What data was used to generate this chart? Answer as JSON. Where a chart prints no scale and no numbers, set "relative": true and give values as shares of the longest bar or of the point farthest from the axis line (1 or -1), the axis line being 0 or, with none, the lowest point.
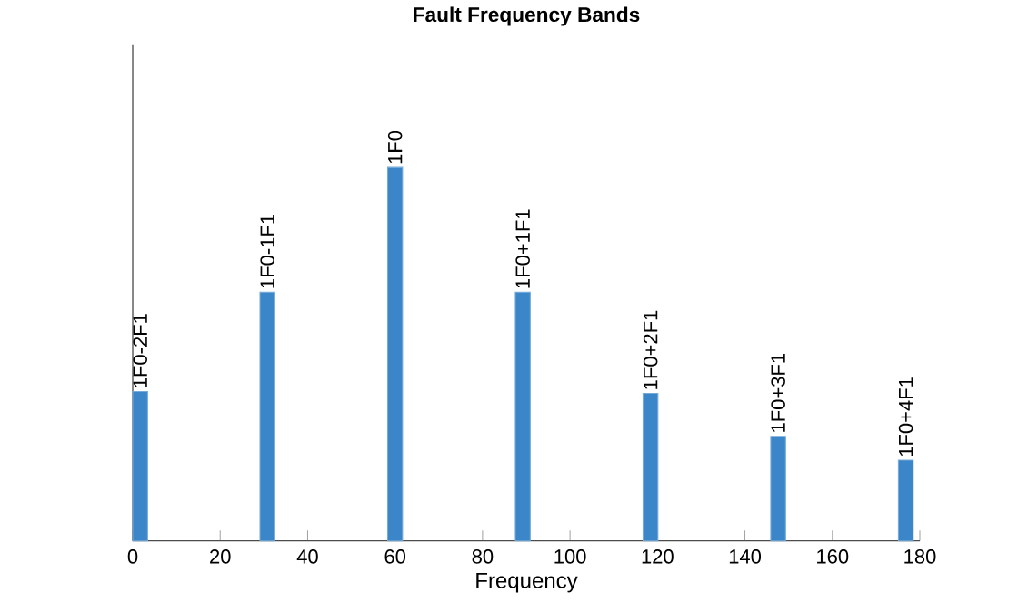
{
  "chart_data": {
    "type": "bar",
    "title": "Fault Frequency Bands",
    "xlabel": "Frequency",
    "x": [
      1.7,
      30.8,
      60,
      89.2,
      118.4,
      147.6,
      176.8
    ],
    "values": [
      0.4,
      0.666,
      1,
      0.666,
      0.395,
      0.28,
      0.216
    ],
    "relative": true,
    "color": "#3b86c8",
    "xlim": [
      0,
      180
    ],
    "xticks": [
      0,
      20,
      40,
      60,
      80,
      100,
      120,
      140,
      160,
      180
    ],
    "tick_labels": "x",
    "annotations": [
      {
        "text": "1F0-2F1",
        "x": 1.7,
        "y": 0.4
      },
      {
        "text": "1F0-1F1",
        "x": 30.8,
        "y": 0.666
      },
      {
        "text": "1F0",
        "x": 60,
        "y": 1
      },
      {
        "text": "1F0+1F1",
        "x": 89.2,
        "y": 0.666
      },
      {
        "text": "1F0+2F1",
        "x": 118.4,
        "y": 0.395
      },
      {
        "text": "1F0+3F1",
        "x": 147.6,
        "y": 0.28
      },
      {
        "text": "1F0+4F1",
        "x": 176.8,
        "y": 0.216
      }
    ]
  }
}
